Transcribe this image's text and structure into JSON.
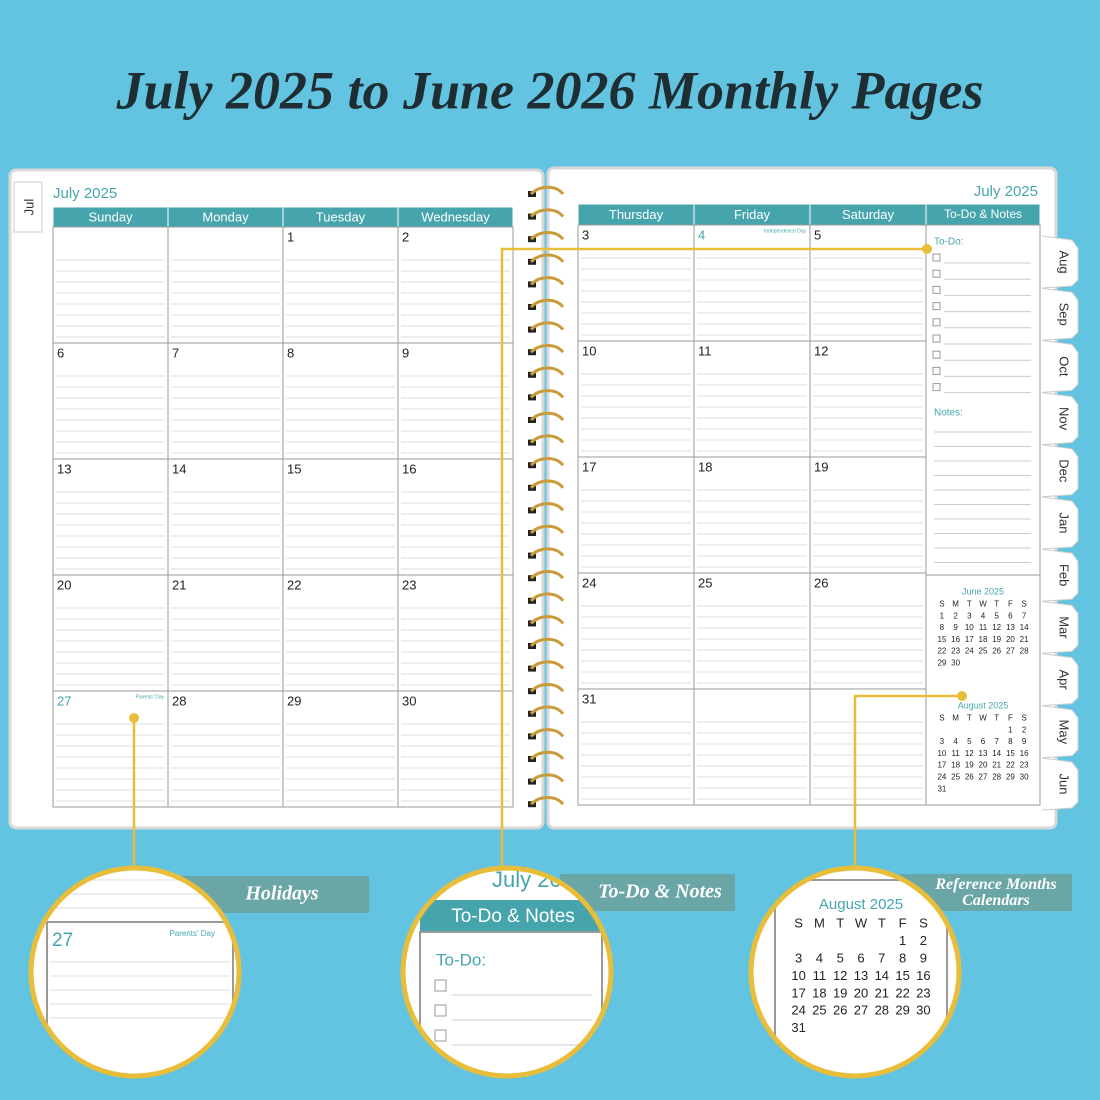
{
  "title": "July 2025 to June 2026 Monthly Pages",
  "left_page": {
    "tab": "Jul",
    "month": "July 2025",
    "weekdays": [
      "Sunday",
      "Monday",
      "Tuesday",
      "Wednesday"
    ],
    "weeks": [
      [
        null,
        null,
        1,
        2
      ],
      [
        6,
        7,
        8,
        9
      ],
      [
        13,
        14,
        15,
        16
      ],
      [
        20,
        21,
        22,
        23
      ],
      [
        27,
        28,
        29,
        30
      ]
    ],
    "holiday": "Parents' Day"
  },
  "right_page": {
    "month": "July 2025",
    "weekdays": [
      "Thursday",
      "Friday",
      "Saturday"
    ],
    "side_header": "To-Do & Notes",
    "weeks": [
      [
        3,
        4,
        5
      ],
      [
        10,
        11,
        12
      ],
      [
        17,
        18,
        19
      ],
      [
        24,
        25,
        26
      ],
      [
        31,
        null,
        null
      ]
    ],
    "holiday": "Independence Day",
    "todo_label": "To-Do:",
    "notes_label": "Notes:",
    "mini_calendars": [
      {
        "title": "June 2025",
        "weekdays": [
          "S",
          "M",
          "T",
          "W",
          "T",
          "F",
          "S"
        ],
        "weeks": [
          [
            1,
            2,
            3,
            4,
            5,
            6,
            7
          ],
          [
            8,
            9,
            10,
            11,
            12,
            13,
            14
          ],
          [
            15,
            16,
            17,
            18,
            19,
            20,
            21
          ],
          [
            22,
            23,
            24,
            25,
            26,
            27,
            28
          ],
          [
            29,
            30
          ]
        ]
      },
      {
        "title": "August 2025",
        "weekdays": [
          "S",
          "M",
          "T",
          "W",
          "T",
          "F",
          "S"
        ],
        "weeks": [
          [
            null,
            null,
            null,
            null,
            null,
            1,
            2
          ],
          [
            3,
            4,
            5,
            6,
            7,
            8,
            9
          ],
          [
            10,
            11,
            12,
            13,
            14,
            15,
            16
          ],
          [
            17,
            18,
            19,
            20,
            21,
            22,
            23
          ],
          [
            24,
            25,
            26,
            27,
            28,
            29,
            30
          ],
          [
            31
          ]
        ]
      }
    ]
  },
  "tabs": [
    "Aug",
    "Sep",
    "Oct",
    "Nov",
    "Dec",
    "Jan",
    "Feb",
    "Mar",
    "Apr",
    "May",
    "Jun"
  ],
  "callouts": [
    "Holidays",
    "To-Do & Notes",
    "Reference Months Calendars"
  ]
}
